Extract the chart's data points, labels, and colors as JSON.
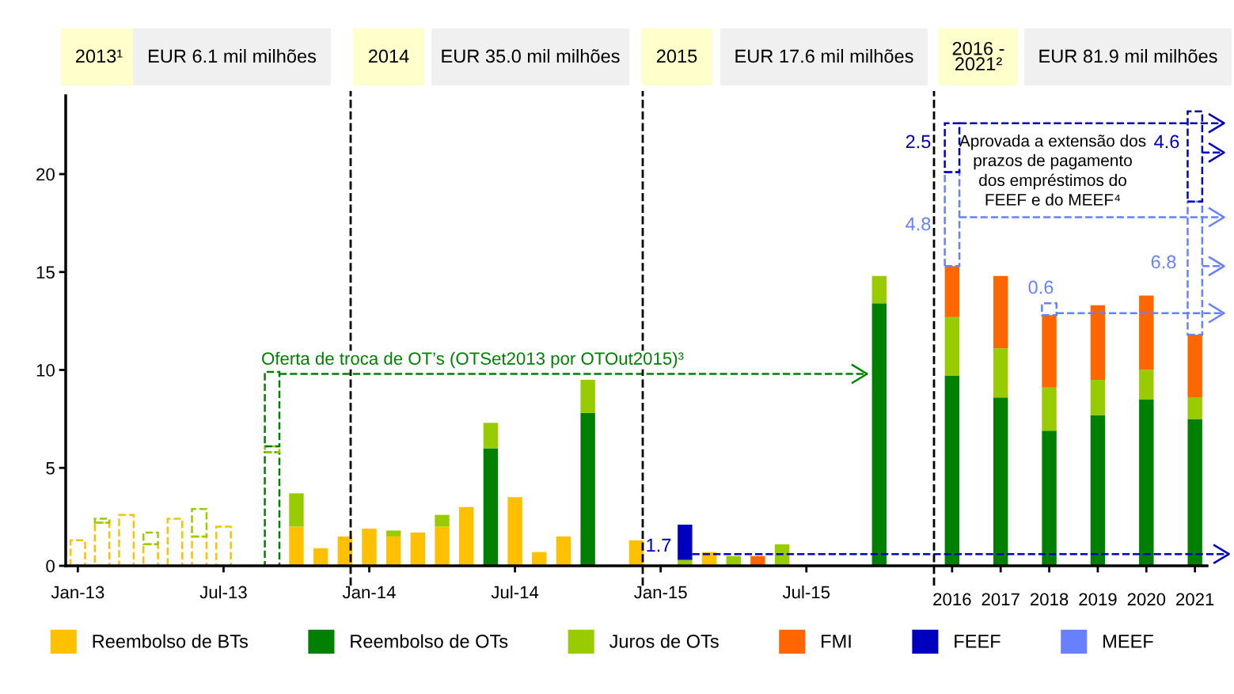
{
  "chart_data": {
    "type": "bar",
    "stacked": true,
    "categories": [
      "Jan-13",
      null,
      null,
      null,
      null,
      null,
      "Jul-13",
      null,
      null,
      null,
      null,
      null,
      "Jan-14",
      null,
      null,
      null,
      null,
      null,
      "Jul-14",
      null,
      null,
      null,
      null,
      null,
      "Jan-15",
      null,
      null,
      null,
      null,
      null,
      "Jul-15",
      null,
      null,
      null,
      null,
      null,
      "2016",
      null,
      "2017",
      null,
      "2018",
      null,
      "2019",
      null,
      "2020",
      null,
      "2021"
    ],
    "series": [
      {
        "name": "Reembolso de BTs",
        "color": "#ffc000",
        "values": [
          null,
          null,
          null,
          null,
          null,
          null,
          null,
          null,
          null,
          2.0,
          0.9,
          1.5,
          1.9,
          1.5,
          1.7,
          2.0,
          3.0,
          null,
          3.5,
          0.7,
          1.5,
          null,
          null,
          1.3,
          null,
          null,
          0.7,
          null,
          null,
          null,
          null,
          null,
          null,
          null,
          null,
          null,
          null,
          null,
          null,
          null,
          null,
          null,
          null,
          null,
          null,
          null,
          null
        ]
      },
      {
        "color": "#ffc000",
        "line_style": "dashed",
        "values": [
          1.3,
          2.2,
          2.6,
          1.1,
          2.4,
          1.5,
          2.0,
          null,
          null,
          null,
          null,
          null,
          null,
          null,
          null,
          null,
          null,
          null,
          null,
          null,
          null,
          null,
          null,
          null,
          null,
          null,
          null,
          null,
          null,
          null,
          null,
          null,
          null,
          null,
          null,
          null,
          null,
          null,
          null,
          null,
          null,
          null,
          null,
          null,
          null,
          null,
          null
        ]
      },
      {
        "name": "Reembolso de OTs",
        "color": "#008000",
        "values": [
          null,
          null,
          null,
          null,
          null,
          null,
          null,
          null,
          null,
          null,
          null,
          null,
          null,
          null,
          null,
          null,
          null,
          6.0,
          null,
          null,
          null,
          7.8,
          null,
          null,
          null,
          null,
          null,
          null,
          null,
          null,
          null,
          null,
          null,
          13.4,
          null,
          null,
          9.7,
          null,
          8.6,
          null,
          6.9,
          null,
          7.7,
          null,
          8.5,
          null,
          7.5
        ]
      },
      {
        "color": "#008000",
        "line_style": "dashed",
        "values": [
          null,
          null,
          null,
          null,
          null,
          null,
          null,
          null,
          5.8,
          null,
          null,
          null,
          null,
          null,
          null,
          null,
          null,
          null,
          null,
          null,
          null,
          null,
          null,
          null,
          null,
          null,
          null,
          null,
          null,
          null,
          null,
          null,
          null,
          null,
          null,
          null,
          null,
          null,
          null,
          null,
          null,
          null,
          null,
          null,
          null,
          null,
          null
        ]
      },
      {
        "name": "Juros de OTs",
        "color": "#99cc00",
        "values": [
          null,
          null,
          null,
          null,
          null,
          null,
          null,
          null,
          null,
          1.7,
          null,
          null,
          null,
          0.3,
          null,
          0.6,
          null,
          1.3,
          null,
          null,
          null,
          1.7,
          null,
          null,
          null,
          0.3,
          null,
          0.5,
          null,
          1.1,
          null,
          null,
          null,
          1.4,
          null,
          null,
          3.0,
          null,
          2.5,
          null,
          2.2,
          null,
          1.8,
          null,
          1.5,
          null,
          1.1
        ]
      },
      {
        "color": "#99cc00",
        "line_style": "dashed",
        "values": [
          null,
          0.2,
          null,
          0.6,
          null,
          1.4,
          null,
          null,
          0.3,
          null,
          null,
          null,
          null,
          null,
          null,
          null,
          null,
          null,
          null,
          null,
          null,
          null,
          null,
          null,
          null,
          null,
          null,
          null,
          null,
          null,
          null,
          null,
          null,
          null,
          null,
          null,
          null,
          null,
          null,
          null,
          null,
          null,
          null,
          null,
          null,
          null,
          null
        ]
      },
      {
        "color": "#008000",
        "line_style": "dashed",
        "values": [
          null,
          null,
          null,
          null,
          null,
          null,
          null,
          null,
          3.8,
          null,
          null,
          null,
          null,
          null,
          null,
          null,
          null,
          null,
          null,
          null,
          null,
          null,
          null,
          null,
          null,
          null,
          null,
          null,
          null,
          null,
          null,
          null,
          null,
          null,
          null,
          null,
          null,
          null,
          null,
          null,
          null,
          null,
          null,
          null,
          null,
          null,
          null
        ]
      },
      {
        "name": "FMI",
        "color": "#ff6600",
        "values": [
          null,
          null,
          null,
          null,
          null,
          null,
          null,
          null,
          null,
          null,
          null,
          null,
          null,
          null,
          null,
          null,
          null,
          null,
          null,
          null,
          null,
          null,
          null,
          null,
          null,
          null,
          null,
          null,
          0.5,
          null,
          null,
          null,
          null,
          null,
          null,
          null,
          2.6,
          null,
          3.7,
          null,
          3.7,
          null,
          3.8,
          null,
          3.8,
          null,
          3.2
        ]
      },
      {
        "name": "FEEF",
        "color": "#0000bf",
        "values": [
          null,
          null,
          null,
          null,
          null,
          null,
          null,
          null,
          null,
          null,
          null,
          null,
          null,
          null,
          null,
          null,
          null,
          null,
          null,
          null,
          null,
          null,
          null,
          null,
          null,
          1.8,
          null,
          null,
          null,
          null,
          null,
          null,
          null,
          null,
          null,
          null,
          null,
          null,
          null,
          null,
          null,
          null,
          null,
          null,
          null,
          null,
          null
        ]
      },
      {
        "name": "MEEF",
        "color": "#6680ff",
        "line_style": "dashed",
        "values": [
          null,
          null,
          null,
          null,
          null,
          null,
          null,
          null,
          null,
          null,
          null,
          null,
          null,
          null,
          null,
          null,
          null,
          null,
          null,
          null,
          null,
          null,
          null,
          null,
          null,
          null,
          null,
          null,
          null,
          null,
          null,
          null,
          null,
          null,
          null,
          null,
          4.8,
          null,
          null,
          null,
          0.6,
          null,
          null,
          null,
          null,
          null,
          6.8
        ]
      },
      {
        "color": "#0000bf",
        "line_style": "dashed",
        "values": [
          null,
          null,
          null,
          null,
          null,
          null,
          null,
          null,
          null,
          null,
          null,
          null,
          null,
          null,
          null,
          null,
          null,
          null,
          null,
          null,
          null,
          null,
          null,
          null,
          null,
          null,
          null,
          null,
          null,
          null,
          null,
          null,
          null,
          null,
          null,
          null,
          2.5,
          null,
          null,
          null,
          null,
          null,
          null,
          null,
          null,
          null,
          4.6
        ]
      }
    ],
    "ylim": [
      0,
      24
    ],
    "yticks": [
      0,
      5,
      10,
      15,
      20
    ],
    "grid": false,
    "legend": "bottom",
    "annotations": [
      "2013¹",
      "EUR 6.1 mil milhões",
      "2014",
      "EUR 35.0 mil milhões",
      "2015",
      "EUR 17.6 mil milhões",
      "2016 -\n2021²",
      "EUR 81.9 mil milhões",
      "Oferta de troca de OT’s (OTSet2013 por OTOut2015)³",
      "Aprovada a extensão dos\nprazos de pagamento\ndos empréstimos do\nFEEF e do MEEF⁴",
      "2.5",
      "4.8",
      "4.6",
      "6.8",
      "0.6",
      "1.7"
    ]
  }
}
